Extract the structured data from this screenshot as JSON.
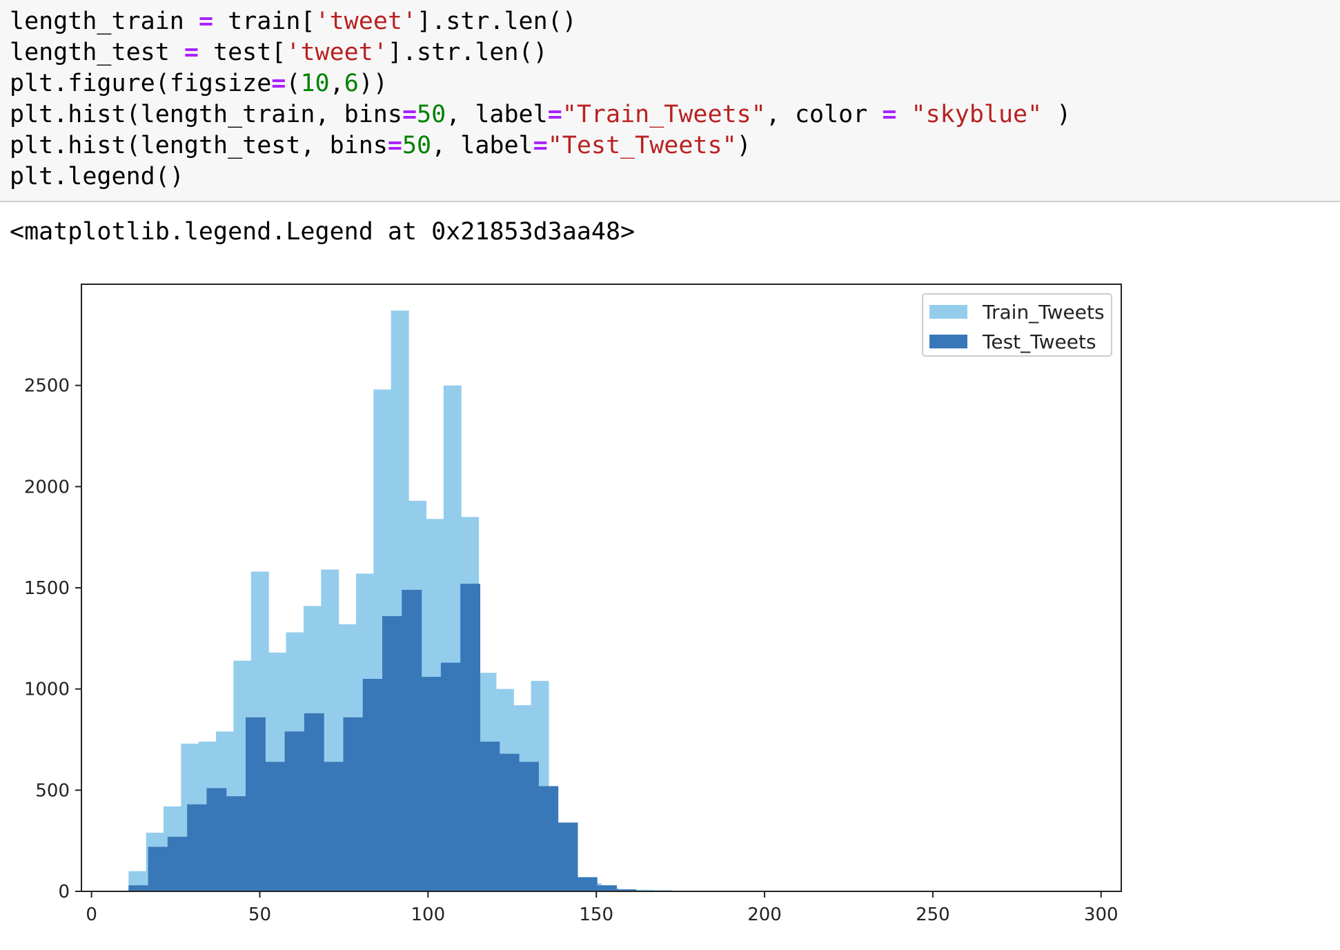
{
  "code_cell": {
    "lines": [
      [
        {
          "t": "length_train ",
          "c": "plain"
        },
        {
          "t": "=",
          "c": "op"
        },
        {
          "t": " train[",
          "c": "plain"
        },
        {
          "t": "'tweet'",
          "c": "str"
        },
        {
          "t": "].str.len()",
          "c": "plain"
        }
      ],
      [
        {
          "t": "length_test ",
          "c": "plain"
        },
        {
          "t": "=",
          "c": "op"
        },
        {
          "t": " test[",
          "c": "plain"
        },
        {
          "t": "'tweet'",
          "c": "str"
        },
        {
          "t": "].str.len()",
          "c": "plain"
        }
      ],
      [
        {
          "t": "plt.figure(figsize",
          "c": "plain"
        },
        {
          "t": "=",
          "c": "op"
        },
        {
          "t": "(",
          "c": "plain"
        },
        {
          "t": "10",
          "c": "num"
        },
        {
          "t": ",",
          "c": "plain"
        },
        {
          "t": "6",
          "c": "num"
        },
        {
          "t": "))",
          "c": "plain"
        }
      ],
      [
        {
          "t": "plt.hist(length_train, bins",
          "c": "plain"
        },
        {
          "t": "=",
          "c": "op"
        },
        {
          "t": "50",
          "c": "num"
        },
        {
          "t": ", label",
          "c": "plain"
        },
        {
          "t": "=",
          "c": "op"
        },
        {
          "t": "\"Train_Tweets\"",
          "c": "str"
        },
        {
          "t": ", color ",
          "c": "plain"
        },
        {
          "t": "=",
          "c": "op"
        },
        {
          "t": " ",
          "c": "plain"
        },
        {
          "t": "\"skyblue\"",
          "c": "str"
        },
        {
          "t": " )",
          "c": "plain"
        }
      ],
      [
        {
          "t": "plt.hist(length_test, bins",
          "c": "plain"
        },
        {
          "t": "=",
          "c": "op"
        },
        {
          "t": "50",
          "c": "num"
        },
        {
          "t": ", label",
          "c": "plain"
        },
        {
          "t": "=",
          "c": "op"
        },
        {
          "t": "\"Test_Tweets\"",
          "c": "str"
        },
        {
          "t": ")",
          "c": "plain"
        }
      ],
      [
        {
          "t": "plt.legend()",
          "c": "plain"
        }
      ]
    ]
  },
  "output": {
    "text": "<matplotlib.legend.Legend at 0x21853d3aa48>"
  },
  "colors": {
    "train": "#94cdec",
    "test": "#3878b8",
    "axes": "#222222",
    "code_bg": "#f7f7f7",
    "op": "#aa22ff",
    "str": "#ba2121",
    "num": "#008000"
  },
  "chart_data": {
    "type": "bar",
    "xlim": [
      -3,
      306
    ],
    "ylim": [
      0,
      3000
    ],
    "xticks": [
      0,
      50,
      100,
      150,
      200,
      250,
      300
    ],
    "yticks": [
      0,
      500,
      1000,
      1500,
      2000,
      2500
    ],
    "grid": false,
    "legend": "top-right",
    "series": [
      {
        "name": "Train_Tweets",
        "bin_edges": [
          11,
          16.2,
          21.4,
          26.6,
          31.8,
          37,
          42.2,
          47.4,
          52.6,
          57.8,
          63,
          68.2,
          73.4,
          78.6,
          83.8,
          89,
          94.2,
          99.4,
          104.6,
          109.8,
          115,
          120.2,
          125.4,
          130.6,
          135.8,
          141,
          146.2,
          151.4,
          156.6,
          161.8,
          167,
          172.2
        ],
        "values": [
          100,
          290,
          420,
          730,
          740,
          790,
          1140,
          1580,
          1180,
          1280,
          1410,
          1590,
          1320,
          1570,
          2480,
          2870,
          1930,
          1840,
          2500,
          1850,
          1080,
          1000,
          920,
          1040,
          220,
          70,
          40,
          15,
          10,
          8,
          6
        ]
      },
      {
        "name": "Test_Tweets",
        "bin_edges": [
          11,
          16.8,
          22.6,
          28.4,
          34.2,
          40,
          45.8,
          51.6,
          57.4,
          63.2,
          69,
          74.8,
          80.6,
          86.4,
          92.2,
          98,
          103.8,
          109.6,
          115.4,
          121.2,
          127,
          132.8,
          138.6,
          144.4,
          150.2,
          156,
          161.8
        ],
        "values": [
          30,
          220,
          270,
          430,
          510,
          470,
          860,
          640,
          790,
          880,
          640,
          860,
          1050,
          1360,
          1490,
          1060,
          1130,
          1520,
          740,
          680,
          640,
          520,
          340,
          70,
          30,
          10
        ]
      }
    ]
  }
}
